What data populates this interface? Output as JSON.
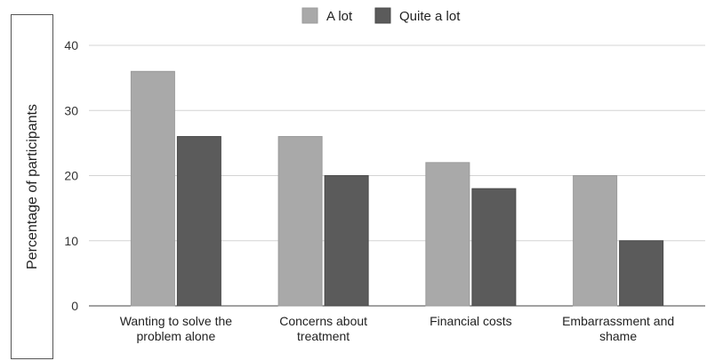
{
  "chart_data": {
    "type": "bar",
    "categories": [
      [
        "Wanting to solve the",
        "problem alone"
      ],
      [
        "Concerns about",
        "treatment"
      ],
      [
        "Financial costs"
      ],
      [
        "Embarrassment and",
        "shame"
      ]
    ],
    "series": [
      {
        "name": "A lot",
        "values": [
          36,
          26,
          22,
          20
        ],
        "color": "#a9a9a9"
      },
      {
        "name": "Quite a lot",
        "values": [
          26,
          20,
          18,
          10
        ],
        "color": "#5b5b5b"
      }
    ],
    "title": "",
    "xlabel": "",
    "ylabel": "Percentage of participants",
    "ylim": [
      0,
      40
    ],
    "yticks": [
      0,
      10,
      20,
      30,
      40
    ],
    "grid": true,
    "legend": "top-center"
  }
}
